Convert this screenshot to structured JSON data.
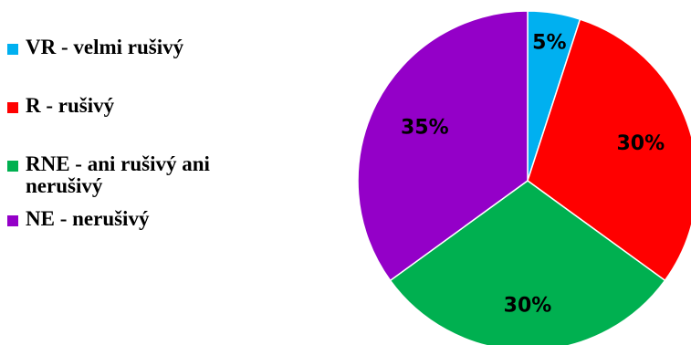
{
  "chart_data": {
    "type": "pie",
    "categories": [
      "VR - velmi rušivý",
      "R - rušivý",
      "RNE - ani rušivý ani nerušivý",
      "NE - nerušivý"
    ],
    "values": [
      5,
      30,
      30,
      35
    ],
    "data_labels": [
      "5%",
      "30%",
      "30%",
      "35%"
    ],
    "colors": [
      "#00b0f0",
      "#ff0000",
      "#00b050",
      "#9400c8"
    ],
    "legend_position": "left",
    "title": ""
  }
}
